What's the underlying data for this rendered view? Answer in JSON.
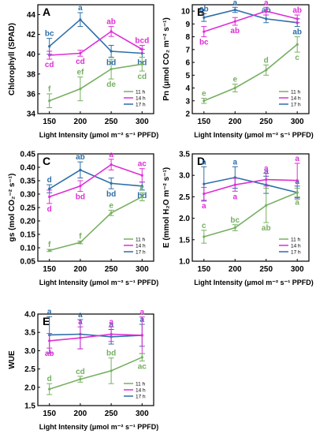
{
  "colors": {
    "11 h": "#77b061",
    "14 h": "#dd2fd6",
    "17 h": "#2e6ea8"
  },
  "chart_data": [
    {
      "panel": "A",
      "type": "line",
      "xlabel": "Light Intensity (μmol m⁻² s⁻¹ PPFD)",
      "ylabel": "Chlorophyll (SPAD)",
      "x": [
        150,
        200,
        250,
        300
      ],
      "xticks": [
        "150",
        "200",
        "250",
        "300"
      ],
      "ylim": [
        34,
        45
      ],
      "yticks": [
        34,
        36,
        38,
        40,
        42,
        44
      ],
      "legend": "bottom-right",
      "series": [
        {
          "name": "11 h",
          "values": [
            35.3,
            36.5,
            38.5,
            39.0
          ],
          "errors": [
            0.7,
            1.2,
            1.0,
            0.7
          ],
          "letters": [
            "f",
            "ef",
            "de",
            "cd"
          ],
          "letter_pos": [
            "above",
            "above",
            "below",
            "below"
          ]
        },
        {
          "name": "14 h",
          "values": [
            39.9,
            40.1,
            42.3,
            40.5
          ],
          "errors": [
            0.4,
            0.3,
            0.5,
            0.4
          ],
          "letters": [
            "cd",
            "cd",
            "ab",
            "bcd"
          ],
          "letter_pos": [
            "below",
            "below",
            "above",
            "above"
          ]
        },
        {
          "name": "17 h",
          "values": [
            40.8,
            43.5,
            40.3,
            40.1
          ],
          "errors": [
            0.8,
            0.7,
            0.6,
            0.4
          ],
          "letters": [
            "bc",
            "a",
            "bd",
            "bd"
          ],
          "letter_pos": [
            "above",
            "above",
            "below",
            "below"
          ]
        }
      ]
    },
    {
      "panel": "B",
      "type": "line",
      "xlabel": "Light Intensity (μmol m⁻² s⁻¹ PPFD)",
      "ylabel": "Pn (μmol CO₂ m⁻² s⁻¹)",
      "x": [
        150,
        200,
        250,
        300
      ],
      "xticks": [
        "150",
        "200",
        "250",
        "300"
      ],
      "ylim": [
        2,
        10.5
      ],
      "yticks": [
        2,
        3,
        4,
        5,
        6,
        7,
        8,
        9,
        10
      ],
      "legend": "bottom-right",
      "series": [
        {
          "name": "11 h",
          "values": [
            3.0,
            4.0,
            5.4,
            7.4
          ],
          "errors": [
            0.2,
            0.3,
            0.4,
            0.6
          ],
          "letters": [
            "e",
            "e",
            "d",
            "c"
          ],
          "letter_pos": [
            "above",
            "above",
            "above",
            "below"
          ]
        },
        {
          "name": "14 h",
          "values": [
            8.4,
            9.2,
            10.0,
            9.4
          ],
          "errors": [
            0.4,
            0.3,
            0.3,
            0.3
          ],
          "letters": [
            "bc",
            "ab",
            "a",
            "ab"
          ],
          "letter_pos": [
            "below",
            "below",
            "above",
            "above"
          ]
        },
        {
          "name": "17 h",
          "values": [
            9.5,
            10.1,
            9.4,
            9.1
          ],
          "errors": [
            0.3,
            0.2,
            0.3,
            0.3
          ],
          "letters": [
            "ab",
            "a",
            "ab",
            "ab"
          ],
          "letter_pos": [
            "above",
            "above",
            "above",
            "below"
          ]
        }
      ]
    },
    {
      "panel": "C",
      "type": "line",
      "xlabel": "Light Intensity (μmol m⁻² s⁻¹ PPFD)",
      "ylabel": "gs (mol CO₂⁻² s⁻¹)",
      "x": [
        150,
        200,
        250,
        300
      ],
      "xticks": [
        "150",
        "200",
        "250",
        "300"
      ],
      "ylim": [
        0.05,
        0.45
      ],
      "yticks": [
        0.05,
        0.1,
        0.15,
        0.2,
        0.25,
        0.3,
        0.35,
        0.4,
        0.45
      ],
      "legend": "bottom-right",
      "series": [
        {
          "name": "11 h",
          "values": [
            0.09,
            0.12,
            0.23,
            0.29
          ],
          "errors": [
            0.004,
            0.005,
            0.01,
            0.015
          ],
          "letters": [
            "f",
            "f",
            "e",
            "c"
          ],
          "letter_pos": [
            "above",
            "above",
            "above",
            "above"
          ]
        },
        {
          "name": "14 h",
          "values": [
            0.29,
            0.33,
            0.41,
            0.37
          ],
          "errors": [
            0.025,
            0.02,
            0.02,
            0.025
          ],
          "letters": [
            "d",
            "bd",
            "a",
            "ac"
          ],
          "letter_pos": [
            "below",
            "below",
            "above",
            "above"
          ]
        },
        {
          "name": "17 h",
          "values": [
            0.32,
            0.39,
            0.34,
            0.33
          ],
          "errors": [
            0.015,
            0.03,
            0.02,
            0.015
          ],
          "letters": [
            "d",
            "ab",
            "bd",
            "bd"
          ],
          "letter_pos": [
            "above",
            "above",
            "below",
            "below"
          ]
        }
      ]
    },
    {
      "panel": "D",
      "type": "line",
      "xlabel": "Light Intensity (μmol m⁻² s⁻¹ PPFD)",
      "ylabel": "E (mmol H₂O m⁻² s⁻¹)",
      "x": [
        150,
        200,
        250,
        300
      ],
      "xticks": [
        "150",
        "200",
        "250",
        "300"
      ],
      "ylim": [
        1.0,
        3.5
      ],
      "yticks": [
        1.0,
        1.5,
        2.0,
        2.5,
        3.0,
        3.5
      ],
      "legend": "bottom-right",
      "series": [
        {
          "name": "11 h",
          "values": [
            1.57,
            1.78,
            2.3,
            2.6
          ],
          "errors": [
            0.15,
            0.07,
            0.4,
            0.1
          ],
          "letters": [
            "c",
            "bc",
            "ab",
            "a"
          ],
          "letter_pos": [
            "above",
            "above",
            "below",
            "below"
          ]
        },
        {
          "name": "14 h",
          "values": [
            2.57,
            2.78,
            2.9,
            2.88
          ],
          "errors": [
            0.15,
            0.15,
            0.15,
            0.4
          ],
          "letters": [
            "a",
            "a",
            "a",
            "a"
          ],
          "letter_pos": [
            "below",
            "below",
            "above",
            "above"
          ]
        },
        {
          "name": "17 h",
          "values": [
            2.8,
            2.95,
            2.78,
            2.6
          ],
          "errors": [
            0.4,
            0.25,
            0.2,
            0.15
          ],
          "letters": [
            "a",
            "a",
            "a",
            "a"
          ],
          "letter_pos": [
            "above",
            "above",
            "above",
            "above"
          ]
        }
      ]
    },
    {
      "panel": "E",
      "type": "line",
      "xlabel": "Light Intensity (μmol m⁻² s⁻¹ PPFD)",
      "ylabel": "WUE",
      "x": [
        150,
        200,
        250,
        300
      ],
      "xticks": [
        "150",
        "200",
        "250",
        "300"
      ],
      "ylim": [
        1.5,
        4.0
      ],
      "yticks": [
        1.5,
        2.0,
        2.5,
        3.0,
        3.5,
        4.0
      ],
      "legend": "bottom-right",
      "series": [
        {
          "name": "11 h",
          "values": [
            1.95,
            2.22,
            2.45,
            2.82
          ],
          "errors": [
            0.15,
            0.08,
            0.35,
            0.1
          ],
          "letters": [
            "d",
            "cd",
            "bd",
            "ac"
          ],
          "letter_pos": [
            "above",
            "above",
            "above",
            "below"
          ]
        },
        {
          "name": "14 h",
          "values": [
            3.27,
            3.35,
            3.45,
            3.42
          ],
          "errors": [
            0.2,
            0.3,
            0.2,
            0.5
          ],
          "letters": [
            "ab",
            "a",
            "a",
            "a"
          ],
          "letter_pos": [
            "below",
            "above",
            "above",
            "above"
          ]
        },
        {
          "name": "17 h",
          "values": [
            3.43,
            3.45,
            3.38,
            3.42
          ],
          "errors": [
            0.5,
            0.4,
            0.2,
            0.3
          ],
          "letters": [
            "a",
            "a",
            "a",
            "a"
          ],
          "letter_pos": [
            "above",
            "above",
            "above",
            "above"
          ]
        }
      ]
    }
  ]
}
